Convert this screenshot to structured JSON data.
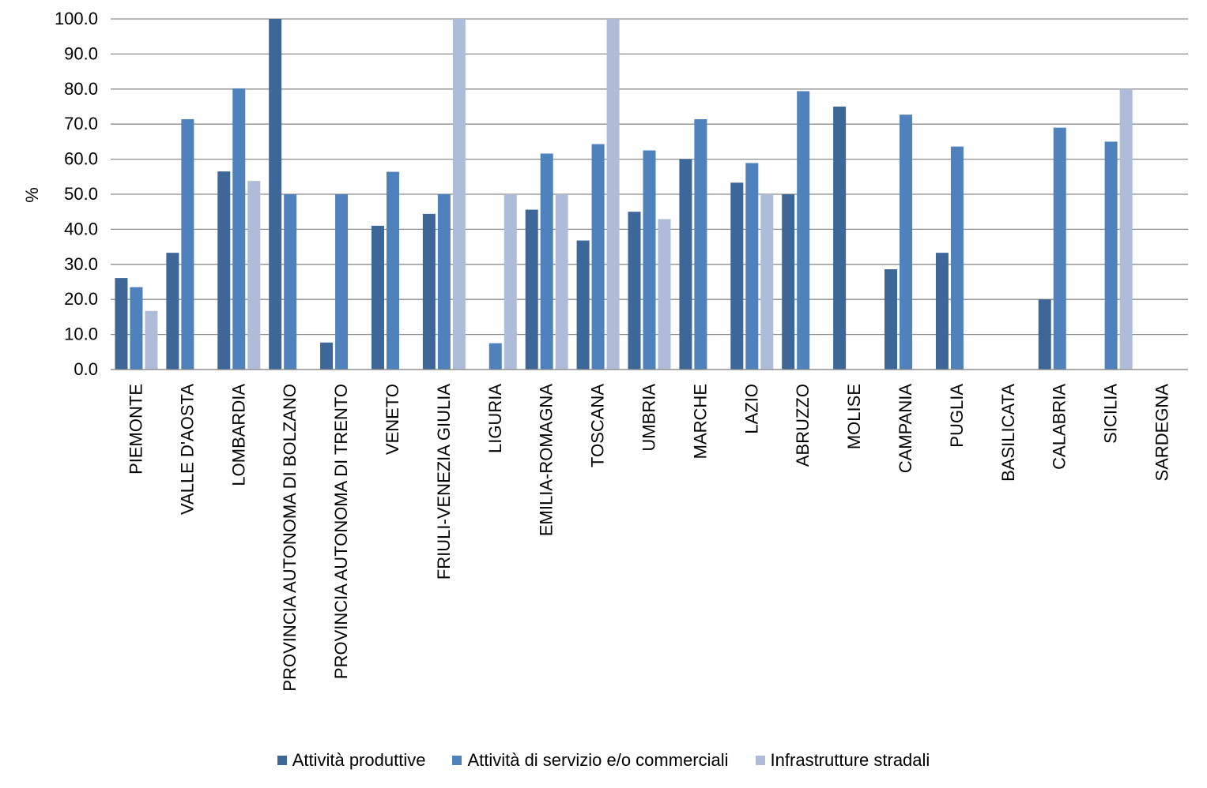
{
  "chart_data": {
    "type": "bar",
    "title": "",
    "xlabel": "",
    "ylabel": "%",
    "ylim": [
      0,
      100
    ],
    "yticks": [
      "0.0",
      "10.0",
      "20.0",
      "30.0",
      "40.0",
      "50.0",
      "60.0",
      "70.0",
      "80.0",
      "90.0",
      "100.0"
    ],
    "grid": true,
    "legend_position": "bottom",
    "categories": [
      "PIEMONTE",
      "VALLE D'AOSTA",
      "LOMBARDIA",
      "PROVINCIA AUTONOMA DI BOLZANO",
      "PROVINCIA AUTONOMA DI TRENTO",
      "VENETO",
      "FRIULI-VENEZIA GIULIA",
      "LIGURIA",
      "EMILIA-ROMAGNA",
      "TOSCANA",
      "UMBRIA",
      "MARCHE",
      "LAZIO",
      "ABRUZZO",
      "MOLISE",
      "CAMPANIA",
      "PUGLIA",
      "BASILICATA",
      "CALABRIA",
      "SICILIA",
      "SARDEGNA"
    ],
    "series": [
      {
        "name": "Attività produttive",
        "color": "#3d6699",
        "values": [
          26.1,
          33.3,
          56.5,
          100.0,
          7.7,
          41.0,
          44.4,
          0,
          45.6,
          36.8,
          45.0,
          60.0,
          53.3,
          50.0,
          75.0,
          28.6,
          33.3,
          0,
          20.0,
          0,
          0
        ]
      },
      {
        "name": "Attività di servizio e/o commerciali",
        "color": "#4f81bd",
        "values": [
          23.5,
          71.4,
          80.2,
          50.0,
          50.0,
          56.4,
          50.0,
          7.5,
          61.6,
          64.3,
          62.5,
          71.4,
          58.9,
          79.4,
          0,
          72.7,
          63.6,
          0,
          69.0,
          65.0,
          0
        ]
      },
      {
        "name": "Infrastrutture stradali",
        "color": "#aebbd9",
        "values": [
          16.7,
          0,
          53.8,
          0,
          0,
          0,
          100.0,
          50.0,
          50.0,
          100.0,
          42.9,
          0,
          50.0,
          0,
          0,
          0,
          0,
          0,
          0,
          80.0,
          0
        ]
      }
    ]
  }
}
